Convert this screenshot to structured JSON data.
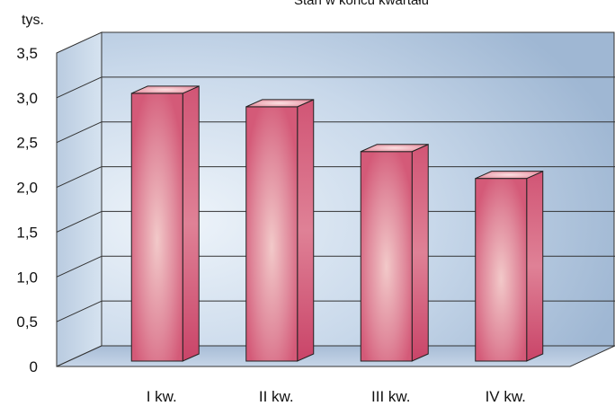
{
  "chart_data": {
    "type": "bar",
    "title": "Stan w końcu kwartału",
    "unit_label": "tys.",
    "categories": [
      "I kw.",
      "II kw.",
      "III kw.",
      "IV kw."
    ],
    "values": [
      3.25,
      3.1,
      2.6,
      2.3
    ],
    "ylim": [
      0,
      3.5
    ],
    "yticks": [
      "0",
      "0,5",
      "1,0",
      "1,5",
      "2,0",
      "2,5",
      "3,0",
      "3,5"
    ],
    "grid": true,
    "three_d": true,
    "colors": {
      "bar_front": "#d45a78",
      "bar_highlight": "#f2c8c8",
      "bar_side": "#c94468",
      "bar_top": "#e88a9c",
      "wall": "#a9c0d9",
      "wall_light": "#e9f1f8"
    }
  }
}
